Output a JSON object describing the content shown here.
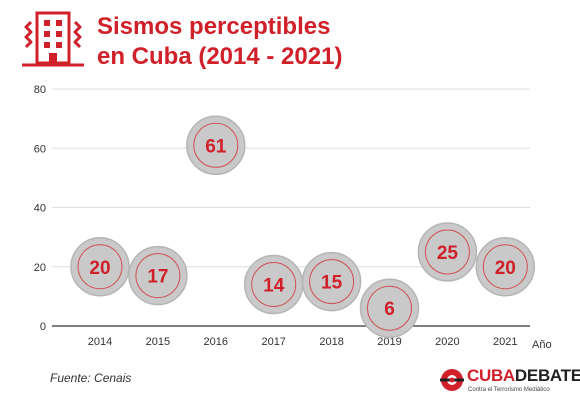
{
  "header": {
    "title_line1": "Sismos perceptibles",
    "title_line2": "en Cuba (2014 - 2021)",
    "icon": "building-shaking-icon"
  },
  "chart_data": {
    "type": "scatter",
    "title": "Sismos perceptibles en Cuba (2014 - 2021)",
    "xlabel": "Año",
    "ylabel": "",
    "categories": [
      "2014",
      "2015",
      "2016",
      "2017",
      "2018",
      "2019",
      "2020",
      "2021"
    ],
    "values": [
      20,
      17,
      61,
      14,
      15,
      6,
      25,
      20
    ],
    "ylim": [
      0,
      80
    ],
    "yticks": [
      0,
      20,
      40,
      60,
      80
    ],
    "grid": true,
    "marker": "bubble",
    "colors": {
      "bubble_fill": "#c9c9c9",
      "bubble_ring": "#d0202a",
      "label": "#d0202a",
      "grid": "#dddddd",
      "axis": "#333333"
    }
  },
  "footer": {
    "source": "Fuente: Cenais",
    "logo_cuba": "CUBA",
    "logo_debate": "DEBATE",
    "logo_tagline": "Contra el Terrorismo Mediático"
  }
}
